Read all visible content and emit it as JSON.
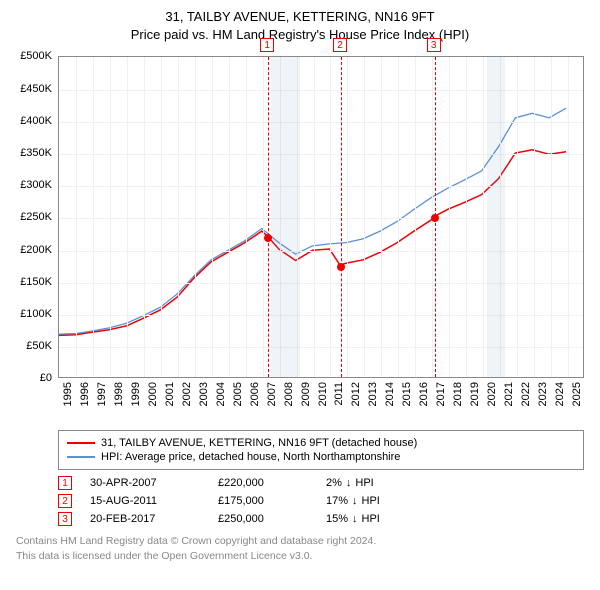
{
  "title_line1": "31, TAILBY AVENUE, KETTERING, NN16 9FT",
  "title_line2": "Price paid vs. HM Land Registry's House Price Index (HPI)",
  "chart": {
    "type": "line",
    "x_start_year": 1995,
    "x_end_year": 2026,
    "x_ticks": [
      1995,
      1996,
      1997,
      1998,
      1999,
      2000,
      2001,
      2002,
      2003,
      2004,
      2005,
      2006,
      2007,
      2008,
      2009,
      2010,
      2011,
      2012,
      2013,
      2014,
      2015,
      2016,
      2017,
      2018,
      2019,
      2020,
      2021,
      2022,
      2023,
      2024,
      2025
    ],
    "y_min": 0,
    "y_max": 500000,
    "y_tick_step": 50000,
    "y_tick_labels": [
      "£0",
      "£50K",
      "£100K",
      "£150K",
      "£200K",
      "£250K",
      "£300K",
      "£350K",
      "£400K",
      "£450K",
      "£500K"
    ],
    "grid_color": "#f0f0f0",
    "border_color": "#888888",
    "background_color": "#ffffff",
    "label_fontsize": 11,
    "shaded_regions": [
      {
        "from": 2007.5,
        "to": 2009.2,
        "color": "rgba(100,150,200,0.10)"
      },
      {
        "from": 2020.2,
        "to": 2021.3,
        "color": "rgba(100,150,200,0.10)"
      }
    ],
    "series": [
      {
        "id": "property",
        "label": "31, TAILBY AVENUE, KETTERING, NN16 9FT (detached house)",
        "color": "#ee0000",
        "width": 1.5,
        "points": [
          [
            1995,
            65000
          ],
          [
            1996,
            66000
          ],
          [
            1997,
            70000
          ],
          [
            1998,
            74000
          ],
          [
            1999,
            80000
          ],
          [
            2000,
            92000
          ],
          [
            2001,
            105000
          ],
          [
            2002,
            125000
          ],
          [
            2003,
            155000
          ],
          [
            2004,
            180000
          ],
          [
            2005,
            195000
          ],
          [
            2006,
            210000
          ],
          [
            2007,
            228000
          ],
          [
            2007.33,
            220000
          ],
          [
            2008,
            200000
          ],
          [
            2009,
            182000
          ],
          [
            2010,
            198000
          ],
          [
            2011,
            200000
          ],
          [
            2011.62,
            175000
          ],
          [
            2012,
            178000
          ],
          [
            2013,
            183000
          ],
          [
            2014,
            195000
          ],
          [
            2015,
            210000
          ],
          [
            2016,
            228000
          ],
          [
            2017,
            245000
          ],
          [
            2017.14,
            250000
          ],
          [
            2018,
            262000
          ],
          [
            2019,
            273000
          ],
          [
            2020,
            285000
          ],
          [
            2021,
            310000
          ],
          [
            2022,
            350000
          ],
          [
            2023,
            355000
          ],
          [
            2024,
            348000
          ],
          [
            2025,
            352000
          ]
        ]
      },
      {
        "id": "hpi",
        "label": "HPI: Average price, detached house, North Northamptonshire",
        "color": "#5b8fd6",
        "width": 1.3,
        "points": [
          [
            1995,
            67000
          ],
          [
            1996,
            68000
          ],
          [
            1997,
            72000
          ],
          [
            1998,
            77000
          ],
          [
            1999,
            84000
          ],
          [
            2000,
            96000
          ],
          [
            2001,
            109000
          ],
          [
            2002,
            130000
          ],
          [
            2003,
            158000
          ],
          [
            2004,
            183000
          ],
          [
            2005,
            198000
          ],
          [
            2006,
            213000
          ],
          [
            2007,
            232000
          ],
          [
            2008,
            210000
          ],
          [
            2009,
            192000
          ],
          [
            2010,
            205000
          ],
          [
            2011,
            208000
          ],
          [
            2012,
            210000
          ],
          [
            2013,
            216000
          ],
          [
            2014,
            228000
          ],
          [
            2015,
            243000
          ],
          [
            2016,
            262000
          ],
          [
            2017,
            280000
          ],
          [
            2018,
            295000
          ],
          [
            2019,
            308000
          ],
          [
            2020,
            322000
          ],
          [
            2021,
            360000
          ],
          [
            2022,
            405000
          ],
          [
            2023,
            412000
          ],
          [
            2024,
            405000
          ],
          [
            2025,
            420000
          ]
        ]
      }
    ],
    "events": [
      {
        "n": "1",
        "year": 2007.33,
        "value": 220000
      },
      {
        "n": "2",
        "year": 2011.62,
        "value": 175000
      },
      {
        "n": "3",
        "year": 2017.14,
        "value": 250000
      }
    ]
  },
  "legend": {
    "items": [
      {
        "color": "#ee0000",
        "label": "31, TAILBY AVENUE, KETTERING, NN16 9FT (detached house)"
      },
      {
        "color": "#5b8fd6",
        "label": "HPI: Average price, detached house, North Northamptonshire"
      }
    ]
  },
  "event_rows": [
    {
      "n": "1",
      "date": "30-APR-2007",
      "price": "£220,000",
      "diff": "2%",
      "vs": "HPI"
    },
    {
      "n": "2",
      "date": "15-AUG-2011",
      "price": "£175,000",
      "diff": "17%",
      "vs": "HPI"
    },
    {
      "n": "3",
      "date": "20-FEB-2017",
      "price": "£250,000",
      "diff": "15%",
      "vs": "HPI"
    }
  ],
  "footer_line1": "Contains HM Land Registry data © Crown copyright and database right 2024.",
  "footer_line2": "This data is licensed under the Open Government Licence v3.0."
}
